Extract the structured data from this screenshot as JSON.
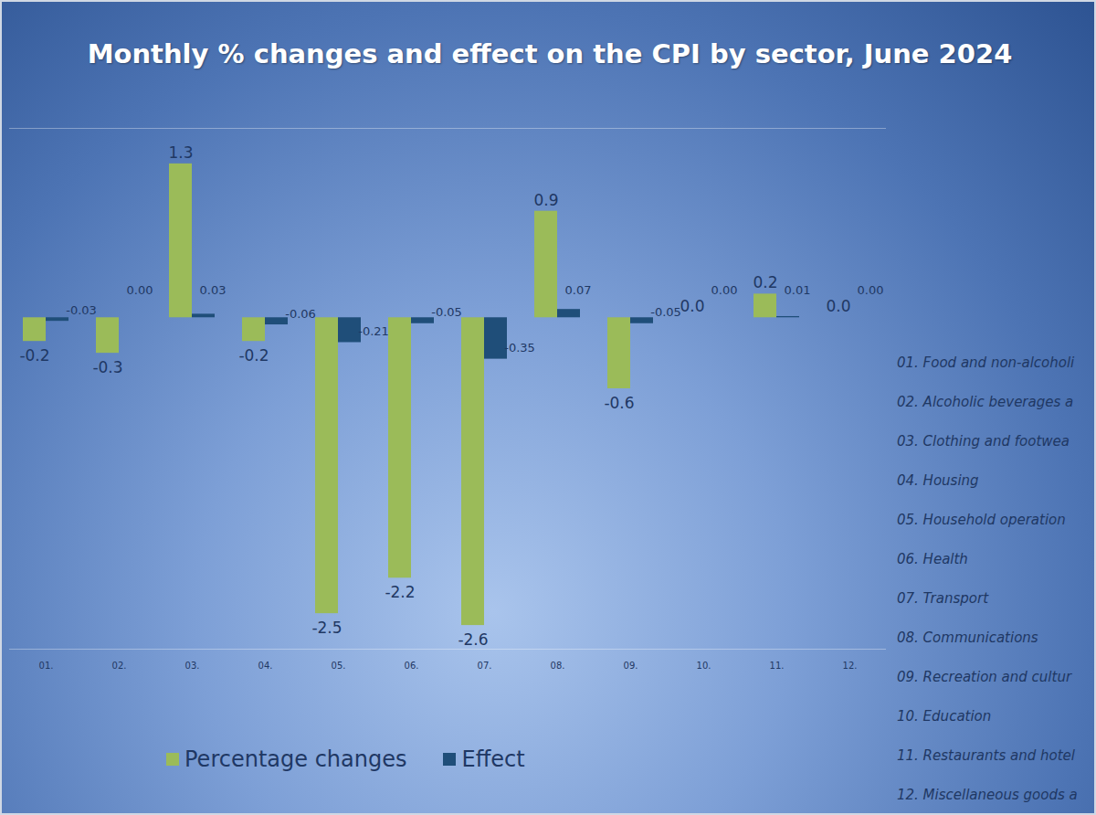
{
  "chart_data": {
    "type": "bar",
    "title": "Monthly % changes and effect on the CPI by sector, June 2024",
    "categories": [
      "01.",
      "02.",
      "03.",
      "04.",
      "05.",
      "06.",
      "07.",
      "08.",
      "09.",
      "10.",
      "11.",
      "12."
    ],
    "series": [
      {
        "name": "Percentage changes",
        "color": "#9bbb59",
        "values": [
          -0.2,
          -0.3,
          1.3,
          -0.2,
          -2.5,
          -2.2,
          -2.6,
          0.9,
          -0.6,
          0.0,
          0.2,
          0.0
        ],
        "value_labels": [
          "-0.2",
          "-0.3",
          "1.3",
          "-0.2",
          "-2.5",
          "-2.2",
          "-2.6",
          "0.9",
          "-0.6",
          "0.0",
          "0.2",
          "0.0"
        ]
      },
      {
        "name": "Effect",
        "color": "#1f4e79",
        "values": [
          -0.03,
          0.0,
          0.03,
          -0.06,
          -0.21,
          -0.05,
          -0.35,
          0.07,
          -0.05,
          0.0,
          0.01,
          0.0
        ],
        "value_labels": [
          "-0.03",
          "0.00",
          "0.03",
          "-0.06",
          "-0.21",
          "-0.05",
          "-0.35",
          "0.07",
          "-0.05",
          "0.00",
          "0.01",
          "0.00"
        ]
      }
    ],
    "ylim": [
      -2.8,
      1.6
    ],
    "data_labels": true,
    "tick_labels": "x",
    "grid": false,
    "legend": "bottom",
    "annotations": [
      "01. Food and non-alcoholi",
      "02. Alcoholic beverages a",
      "03. Clothing and footwea",
      "04. Housing",
      "05. Household operation",
      "06. Health",
      "07. Transport",
      "08. Communications",
      "09. Recreation and cultur",
      "10. Education",
      "11. Restaurants and hotel",
      "12. Miscellaneous goods a"
    ]
  }
}
